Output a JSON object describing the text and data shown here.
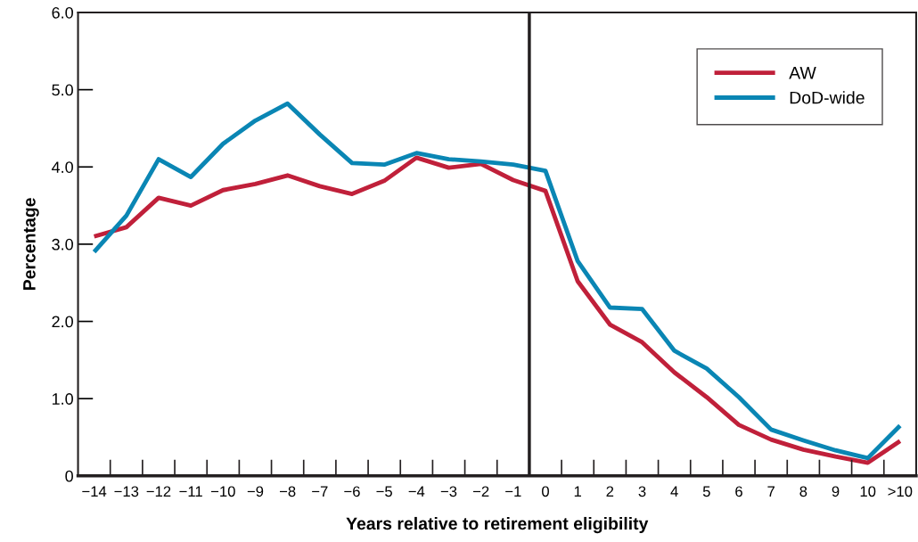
{
  "chart_data": {
    "type": "line",
    "xlabel": "Years relative to retirement eligibility",
    "ylabel": "Percentage",
    "categories": [
      "−14",
      "−13",
      "−12",
      "−11",
      "−10",
      "−9",
      "−8",
      "−7",
      "−6",
      "−5",
      "−4",
      "−3",
      "−2",
      "−1",
      "0",
      "1",
      "2",
      "3",
      "4",
      "5",
      "6",
      "7",
      "8",
      "9",
      "10",
      ">10"
    ],
    "series": [
      {
        "name": "AW",
        "color": "#c0203a",
        "values": [
          3.1,
          3.22,
          3.6,
          3.5,
          3.7,
          3.78,
          3.89,
          3.75,
          3.65,
          3.82,
          4.12,
          3.99,
          4.04,
          3.83,
          3.69,
          2.52,
          1.96,
          1.73,
          1.34,
          1.02,
          0.66,
          0.47,
          0.34,
          0.25,
          0.17,
          0.45
        ]
      },
      {
        "name": "DoD-wide",
        "color": "#0a86b4",
        "values": [
          2.9,
          3.37,
          4.1,
          3.87,
          4.3,
          4.6,
          4.82,
          4.42,
          4.05,
          4.03,
          4.18,
          4.1,
          4.07,
          4.03,
          3.95,
          2.78,
          2.18,
          2.16,
          1.62,
          1.39,
          1.02,
          0.6,
          0.46,
          0.33,
          0.23,
          0.65
        ]
      }
    ],
    "ylim": [
      0,
      6
    ],
    "yticks": [
      {
        "value": 0,
        "label": "0"
      },
      {
        "value": 1,
        "label": "1.0"
      },
      {
        "value": 2,
        "label": "2.0"
      },
      {
        "value": 3,
        "label": "3.0"
      },
      {
        "value": 4,
        "label": "4.0"
      },
      {
        "value": 5,
        "label": "5.0"
      },
      {
        "value": 6,
        "label": "6.0"
      }
    ],
    "legend": "top right",
    "grid": false,
    "marker": "none",
    "line_style": "solid"
  }
}
